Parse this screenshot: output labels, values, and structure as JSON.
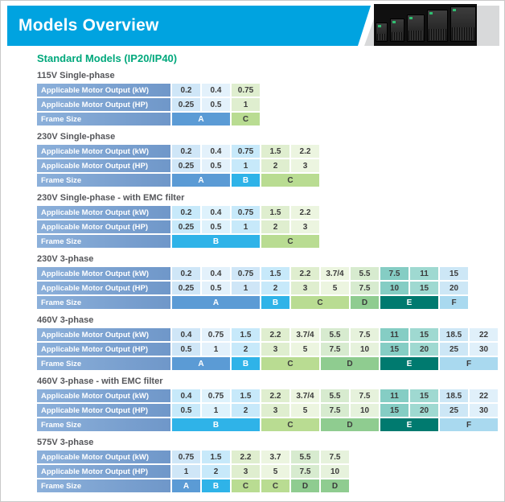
{
  "banner": {
    "title": "Models Overview",
    "color": "#00a3e0"
  },
  "heading": {
    "text": "Standard Models (IP20/IP40)",
    "color": "#00a87c"
  },
  "row_labels": {
    "kw": "Applicable Motor Output (kW)",
    "hp": "Applicable Motor Output (HP)",
    "frame": "Frame Size"
  },
  "palette": {
    "label_bg": "#7da4d2",
    "cell": {
      "a1": "#cfe6f7",
      "a2": "#e3f1fb",
      "b1": "#c7e9fa",
      "b2": "#def2fc",
      "c1": "#dfeecf",
      "c2": "#ecf5e0",
      "d1": "#d7ebcf",
      "d2": "#e6f2dc",
      "e1": "#85cdc4",
      "e2": "#9fd9d1",
      "f1": "#cde7f6",
      "f2": "#e0f0fa"
    },
    "frame": {
      "A": {
        "bg": "#5b9bd5",
        "fg": "#ffffff"
      },
      "B": {
        "bg": "#2fb3e8",
        "fg": "#ffffff"
      },
      "C": {
        "bg": "#b9dc92",
        "fg": "#3b3b3b"
      },
      "D": {
        "bg": "#8fcc90",
        "fg": "#3b3b3b"
      },
      "E": {
        "bg": "#007a6f",
        "fg": "#ffffff"
      },
      "F": {
        "bg": "#a9d9ef",
        "fg": "#3b3b3b"
      }
    }
  },
  "tables": [
    {
      "title": "115V Single-phase",
      "kw": [
        "0.2",
        "0.4",
        "0.75"
      ],
      "hp": [
        "0.25",
        "0.5",
        "1"
      ],
      "colors": [
        "a1",
        "a2",
        "c1"
      ],
      "frames": [
        {
          "label": "A",
          "span": 2
        },
        {
          "label": "C",
          "span": 1
        }
      ]
    },
    {
      "title": "230V Single-phase",
      "kw": [
        "0.2",
        "0.4",
        "0.75",
        "1.5",
        "2.2"
      ],
      "hp": [
        "0.25",
        "0.5",
        "1",
        "2",
        "3"
      ],
      "colors": [
        "a1",
        "a2",
        "b1",
        "c1",
        "c2"
      ],
      "frames": [
        {
          "label": "A",
          "span": 2
        },
        {
          "label": "B",
          "span": 1
        },
        {
          "label": "C",
          "span": 2
        }
      ]
    },
    {
      "title": "230V Single-phase - with EMC filter",
      "kw": [
        "0.2",
        "0.4",
        "0.75",
        "1.5",
        "2.2"
      ],
      "hp": [
        "0.25",
        "0.5",
        "1",
        "2",
        "3"
      ],
      "colors": [
        "b1",
        "b2",
        "b1",
        "c1",
        "c2"
      ],
      "frames": [
        {
          "label": "B",
          "span": 3
        },
        {
          "label": "C",
          "span": 2
        }
      ]
    },
    {
      "title": "230V 3-phase",
      "kw": [
        "0.2",
        "0.4",
        "0.75",
        "1.5",
        "2.2",
        "3.7/4",
        "5.5",
        "7.5",
        "11",
        "15"
      ],
      "hp": [
        "0.25",
        "0.5",
        "1",
        "2",
        "3",
        "5",
        "7.5",
        "10",
        "15",
        "20"
      ],
      "colors": [
        "a1",
        "a2",
        "a1",
        "b1",
        "c1",
        "c2",
        "d1",
        "e1",
        "e2",
        "f1"
      ],
      "frames": [
        {
          "label": "A",
          "span": 3
        },
        {
          "label": "B",
          "span": 1
        },
        {
          "label": "C",
          "span": 2
        },
        {
          "label": "D",
          "span": 1
        },
        {
          "label": "E",
          "span": 2
        },
        {
          "label": "F",
          "span": 1
        }
      ]
    },
    {
      "title": "460V 3-phase",
      "kw": [
        "0.4",
        "0.75",
        "1.5",
        "2.2",
        "3.7/4",
        "5.5",
        "7.5",
        "11",
        "15",
        "18.5",
        "22"
      ],
      "hp": [
        "0.5",
        "1",
        "2",
        "3",
        "5",
        "7.5",
        "10",
        "15",
        "20",
        "25",
        "30"
      ],
      "colors": [
        "a1",
        "a2",
        "b1",
        "c1",
        "c2",
        "d1",
        "d2",
        "e1",
        "e2",
        "f1",
        "f2"
      ],
      "frames": [
        {
          "label": "A",
          "span": 2
        },
        {
          "label": "B",
          "span": 1
        },
        {
          "label": "C",
          "span": 2
        },
        {
          "label": "D",
          "span": 2
        },
        {
          "label": "E",
          "span": 2
        },
        {
          "label": "F",
          "span": 2
        }
      ]
    },
    {
      "title": "460V 3-phase - with EMC filter",
      "kw": [
        "0.4",
        "0.75",
        "1.5",
        "2.2",
        "3.7/4",
        "5.5",
        "7.5",
        "11",
        "15",
        "18.5",
        "22"
      ],
      "hp": [
        "0.5",
        "1",
        "2",
        "3",
        "5",
        "7.5",
        "10",
        "15",
        "20",
        "25",
        "30"
      ],
      "colors": [
        "b1",
        "b2",
        "b1",
        "c1",
        "c2",
        "d1",
        "d2",
        "e1",
        "e2",
        "f1",
        "f2"
      ],
      "frames": [
        {
          "label": "B",
          "span": 3
        },
        {
          "label": "C",
          "span": 2
        },
        {
          "label": "D",
          "span": 2
        },
        {
          "label": "E",
          "span": 2
        },
        {
          "label": "F",
          "span": 2
        }
      ]
    },
    {
      "title": "575V 3-phase",
      "kw": [
        "0.75",
        "1.5",
        "2.2",
        "3.7",
        "5.5",
        "7.5"
      ],
      "hp": [
        "1",
        "2",
        "3",
        "5",
        "7.5",
        "10"
      ],
      "colors": [
        "a1",
        "b1",
        "c1",
        "c2",
        "d1",
        "d2"
      ],
      "frames": [
        {
          "label": "A",
          "span": 1
        },
        {
          "label": "B",
          "span": 1
        },
        {
          "label": "C",
          "span": 1
        },
        {
          "label": "C",
          "span": 1
        },
        {
          "label": "D",
          "span": 1
        },
        {
          "label": "D",
          "span": 1
        }
      ]
    }
  ]
}
